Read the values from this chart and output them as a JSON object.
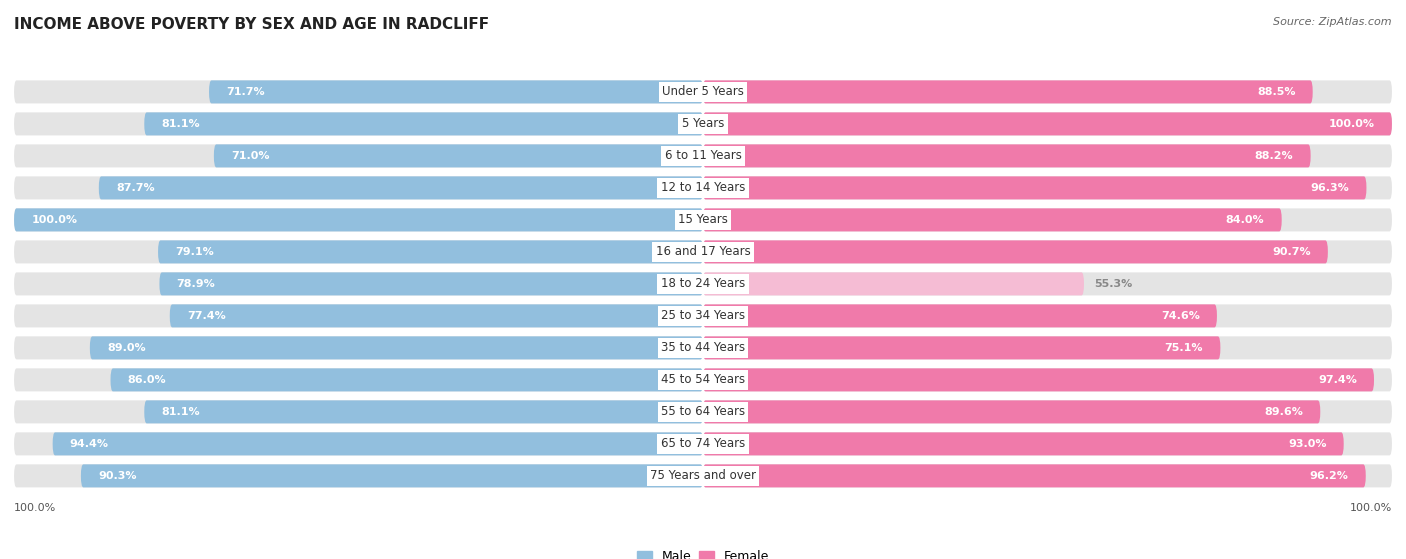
{
  "title": "INCOME ABOVE POVERTY BY SEX AND AGE IN RADCLIFF",
  "source": "Source: ZipAtlas.com",
  "categories": [
    "Under 5 Years",
    "5 Years",
    "6 to 11 Years",
    "12 to 14 Years",
    "15 Years",
    "16 and 17 Years",
    "18 to 24 Years",
    "25 to 34 Years",
    "35 to 44 Years",
    "45 to 54 Years",
    "55 to 64 Years",
    "65 to 74 Years",
    "75 Years and over"
  ],
  "male_values": [
    71.7,
    81.1,
    71.0,
    87.7,
    100.0,
    79.1,
    78.9,
    77.4,
    89.0,
    86.0,
    81.1,
    94.4,
    90.3
  ],
  "female_values": [
    88.5,
    100.0,
    88.2,
    96.3,
    84.0,
    90.7,
    55.3,
    74.6,
    75.1,
    97.4,
    89.6,
    93.0,
    96.2
  ],
  "male_color": "#92bfde",
  "female_color": "#f07aaa",
  "female_low_color": "#f5bcd4",
  "male_label": "Male",
  "female_label": "Female",
  "bg_color": "#ffffff",
  "bar_bg_color": "#e4e4e4",
  "max_value": 100.0,
  "title_fontsize": 11,
  "label_fontsize": 8.5,
  "value_fontsize": 8,
  "bottom_label_value": "100.0%"
}
